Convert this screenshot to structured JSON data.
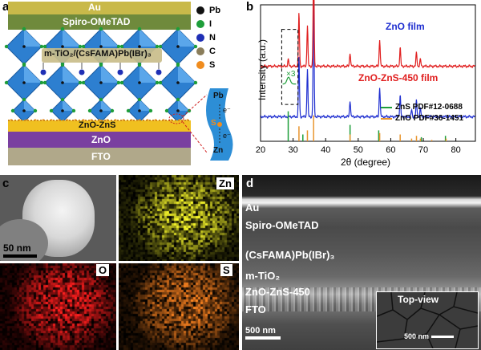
{
  "panel_a": {
    "label": "a",
    "layers": {
      "au": "Au",
      "spiro": "Spiro-OMeTAD",
      "perovskite": "m-TiO₂/(CsFAMA)Pb(IBr)₃",
      "zno_zns": "ZnO-ZnS",
      "zno": "ZnO",
      "fto": "FTO"
    },
    "legend": [
      {
        "symbol": "Pb",
        "color": "#111111"
      },
      {
        "symbol": "I",
        "color": "#1e9e3a"
      },
      {
        "symbol": "N",
        "color": "#1f2fb5"
      },
      {
        "symbol": "C",
        "color": "#8a7d5a"
      },
      {
        "symbol": "S",
        "color": "#f08c1e"
      }
    ],
    "inset": {
      "top": "Pb",
      "bond": "S",
      "bottom": "Zn",
      "electron": "e⁻"
    }
  },
  "panel_b": {
    "label": "b"
  },
  "chart_data": {
    "type": "line",
    "xlabel": "2θ (degree)",
    "ylabel": "Intensity (a.u.)",
    "xlim": [
      20,
      86
    ],
    "xticks": [
      20,
      30,
      40,
      50,
      60,
      70,
      80
    ],
    "annotation": "×3",
    "series": [
      {
        "name": "ZnO film",
        "color": "#1f2fd0",
        "baseline": 0.82,
        "peaks": [
          [
            31.8,
            0.45
          ],
          [
            34.4,
            0.35
          ],
          [
            36.3,
            0.85
          ],
          [
            47.5,
            0.12
          ],
          [
            56.6,
            0.22
          ],
          [
            62.9,
            0.16
          ],
          [
            66.4,
            0.05
          ],
          [
            67.9,
            0.12
          ],
          [
            69.1,
            0.06
          ]
        ]
      },
      {
        "name": "ZnO-ZnS-450 film",
        "color": "#e01e1e",
        "baseline": 0.45,
        "peaks": [
          [
            28.5,
            0.05
          ],
          [
            31.8,
            0.4
          ],
          [
            34.4,
            0.3
          ],
          [
            36.3,
            0.75
          ],
          [
            47.5,
            0.1
          ],
          [
            56.6,
            0.2
          ],
          [
            62.9,
            0.14
          ],
          [
            67.9,
            0.1
          ],
          [
            69.1,
            0.05
          ]
        ]
      },
      {
        "name": "ZnS PDF#12-0688",
        "color": "#1e9e3a",
        "bars": [
          [
            28.5,
            0.22
          ],
          [
            33.0,
            0.05
          ],
          [
            47.5,
            0.12
          ],
          [
            56.3,
            0.08
          ],
          [
            69.4,
            0.03
          ],
          [
            76.8,
            0.04
          ]
        ]
      },
      {
        "name": "ZnO PDF#36-1451",
        "color": "#e8952e",
        "bars": [
          [
            31.8,
            0.11
          ],
          [
            34.4,
            0.08
          ],
          [
            36.3,
            0.19
          ],
          [
            47.5,
            0.05
          ],
          [
            56.6,
            0.06
          ],
          [
            62.9,
            0.05
          ],
          [
            66.4,
            0.02
          ],
          [
            67.9,
            0.04
          ],
          [
            69.1,
            0.02
          ],
          [
            72.6,
            0.01
          ],
          [
            77.0,
            0.02
          ]
        ]
      }
    ]
  },
  "panel_c": {
    "label": "c",
    "scale": "50 nm",
    "maps": [
      {
        "element": "Zn",
        "color": "#d8d820"
      },
      {
        "element": "O",
        "color": "#e01818"
      },
      {
        "element": "S",
        "color": "#e08020"
      }
    ]
  },
  "panel_d": {
    "label": "d",
    "layers": [
      "Au",
      "Spiro-OMeTAD",
      "(CsFAMA)Pb(IBr)₃",
      "m-TiO₂",
      "ZnO-ZnS-450",
      "FTO"
    ],
    "scale": "500 nm",
    "inset": {
      "title": "Top-view",
      "scale": "500 nm"
    }
  }
}
